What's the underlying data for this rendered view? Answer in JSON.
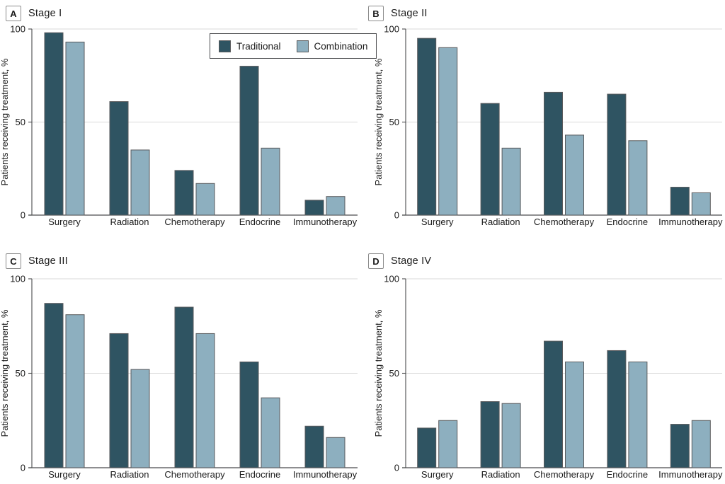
{
  "figure": {
    "panels": [
      {
        "label": "A",
        "title": "Stage I"
      },
      {
        "label": "B",
        "title": "Stage II"
      },
      {
        "label": "C",
        "title": "Stage III"
      },
      {
        "label": "D",
        "title": "Stage IV"
      }
    ],
    "legend": {
      "position": "inside top-right of panel A only",
      "items": [
        {
          "label": "Traditional",
          "color": "#2F5462"
        },
        {
          "label": "Combination",
          "color": "#8DAFBF"
        }
      ]
    },
    "colors": {
      "traditional": "#2F5462",
      "combination": "#8DAFBF",
      "bar_outline": "#595A5C",
      "axis": "#4A4B4D",
      "gridline": "#D9D9D9",
      "text": "#1A1A1A",
      "background": "#FFFFFF"
    }
  },
  "chart_data": [
    {
      "type": "bar",
      "panel": "A",
      "title": "Stage I",
      "categories": [
        "Surgery",
        "Radiation",
        "Chemotherapy",
        "Endocrine",
        "Immunotherapy"
      ],
      "series": [
        {
          "name": "Traditional",
          "values": [
            98,
            61,
            24,
            80,
            8
          ]
        },
        {
          "name": "Combination",
          "values": [
            93,
            35,
            17,
            36,
            10
          ]
        }
      ],
      "xlabel": "",
      "ylabel": "Patients receiving treatment, %",
      "ylim": [
        0,
        100
      ],
      "yticks": [
        0,
        50,
        100
      ],
      "grid": "horizontal lines at 50 and 100",
      "legend_position": "top-right inside plot"
    },
    {
      "type": "bar",
      "panel": "B",
      "title": "Stage II",
      "categories": [
        "Surgery",
        "Radiation",
        "Chemotherapy",
        "Endocrine",
        "Immunotherapy"
      ],
      "series": [
        {
          "name": "Traditional",
          "values": [
            95,
            60,
            66,
            65,
            15
          ]
        },
        {
          "name": "Combination",
          "values": [
            90,
            36,
            43,
            40,
            12
          ]
        }
      ],
      "xlabel": "",
      "ylabel": "Patients receiving treatment, %",
      "ylim": [
        0,
        100
      ],
      "yticks": [
        0,
        50,
        100
      ],
      "grid": "horizontal lines at 50 and 100",
      "legend_position": "none"
    },
    {
      "type": "bar",
      "panel": "C",
      "title": "Stage III",
      "categories": [
        "Surgery",
        "Radiation",
        "Chemotherapy",
        "Endocrine",
        "Immunotherapy"
      ],
      "series": [
        {
          "name": "Traditional",
          "values": [
            87,
            71,
            85,
            56,
            22
          ]
        },
        {
          "name": "Combination",
          "values": [
            81,
            52,
            71,
            37,
            16
          ]
        }
      ],
      "xlabel": "",
      "ylabel": "Patients receiving treatment, %",
      "ylim": [
        0,
        100
      ],
      "yticks": [
        0,
        50,
        100
      ],
      "grid": "horizontal lines at 50 and 100",
      "legend_position": "none"
    },
    {
      "type": "bar",
      "panel": "D",
      "title": "Stage IV",
      "categories": [
        "Surgery",
        "Radiation",
        "Chemotherapy",
        "Endocrine",
        "Immunotherapy"
      ],
      "series": [
        {
          "name": "Traditional",
          "values": [
            21,
            35,
            67,
            62,
            23
          ]
        },
        {
          "name": "Combination",
          "values": [
            25,
            34,
            56,
            56,
            25
          ]
        }
      ],
      "xlabel": "",
      "ylabel": "Patients receiving treatment, %",
      "ylim": [
        0,
        100
      ],
      "yticks": [
        0,
        50,
        100
      ],
      "grid": "horizontal lines at 50 and 100",
      "legend_position": "none"
    }
  ]
}
